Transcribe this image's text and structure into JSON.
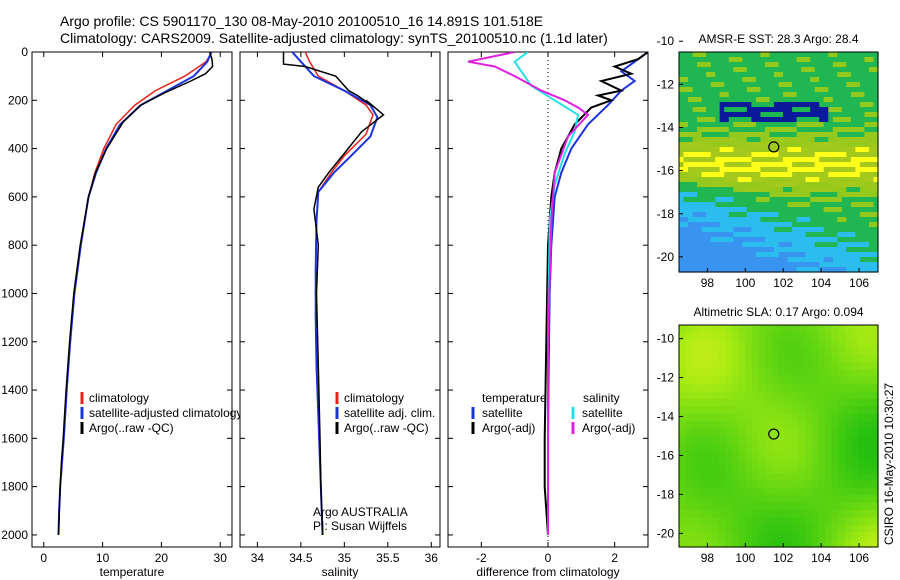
{
  "header": {
    "line1": "Argo profile: CS 5901170_130 08-May-2010 20100510_16 14.891S 101.518E",
    "line2": "Climatology: CARS2009. Satellite-adjusted climatology: synTS_20100510.nc (1.1d later)"
  },
  "side_label": "CSIRO 16-May-2010 10:30:27",
  "colors": {
    "climatology": "#e8221b",
    "satellite": "#1c33e0",
    "argo": "#000000",
    "sat_diff": "#22e0e8",
    "argo_adj": "#e020e0"
  },
  "chart_data": [
    {
      "type": "line",
      "xlabel": "temperature",
      "xlim": [
        -2,
        32
      ],
      "ylim": [
        0,
        2050
      ],
      "xticks": [
        0,
        10,
        20,
        30
      ],
      "yticks": [
        0,
        200,
        400,
        600,
        800,
        1000,
        1200,
        1400,
        1600,
        1800,
        2000
      ],
      "legend": [
        "climatology",
        "satellite-adjusted climatology",
        "Argo(..raw -QC)"
      ],
      "series": [
        {
          "name": "climatology",
          "x": [
            28.6,
            27.6,
            24,
            19,
            15.5,
            12.3,
            10.2,
            8.7,
            7.6,
            6.3,
            5.2,
            4.5,
            3.9,
            3.4,
            3.1,
            2.8,
            2.6,
            2.5
          ],
          "y": [
            0,
            40,
            100,
            160,
            220,
            300,
            400,
            500,
            600,
            800,
            1000,
            1200,
            1400,
            1600,
            1700,
            1800,
            1900,
            2000
          ]
        },
        {
          "name": "satellite-adjusted climatology",
          "x": [
            28.5,
            27.8,
            25.5,
            21,
            16.5,
            13,
            10.6,
            8.9,
            7.6,
            6.3,
            5.2,
            4.5,
            3.9,
            3.4,
            3.1,
            2.8,
            2.6,
            2.5
          ],
          "y": [
            0,
            40,
            100,
            160,
            220,
            300,
            400,
            500,
            600,
            800,
            1000,
            1200,
            1400,
            1600,
            1700,
            1800,
            1900,
            2000
          ]
        },
        {
          "name": "Argo(..raw -QC)",
          "x": [
            28.2,
            28.6,
            28.7,
            27.5,
            25,
            20.5,
            16.5,
            13.5,
            10.7,
            8.8,
            7.6,
            6.2,
            5.1,
            4.4,
            3.8,
            3.3,
            3,
            2.8,
            2.5
          ],
          "y": [
            0,
            30,
            60,
            90,
            120,
            170,
            220,
            290,
            400,
            500,
            600,
            800,
            1000,
            1200,
            1400,
            1600,
            1700,
            1800,
            2000
          ]
        }
      ]
    },
    {
      "type": "line",
      "xlabel": "salinity",
      "xlim": [
        33.8,
        36.1
      ],
      "ylim": [
        0,
        2050
      ],
      "xticks": [
        34,
        34.5,
        35,
        35.5,
        36
      ],
      "yticks": [
        0,
        200,
        400,
        600,
        800,
        1000,
        1200,
        1400,
        1600,
        1800,
        2000
      ],
      "legend": [
        "climatology",
        "satellite adj. clim.",
        "Argo(..raw -QC)"
      ],
      "annotation": [
        "Argo AUSTRALIA",
        "PI: Susan Wijffels"
      ],
      "series": [
        {
          "name": "climatology",
          "x": [
            34.55,
            34.6,
            34.7,
            35.0,
            35.25,
            35.33,
            35.25,
            35.0,
            34.85,
            34.7,
            34.68,
            34.67,
            34.67,
            34.68,
            34.7,
            34.72,
            34.74,
            34.75
          ],
          "y": [
            0,
            40,
            100,
            160,
            220,
            260,
            340,
            430,
            500,
            580,
            700,
            900,
            1100,
            1300,
            1500,
            1700,
            1900,
            2000
          ]
        },
        {
          "name": "satellite adj. clim.",
          "x": [
            34.4,
            34.5,
            34.65,
            35.0,
            35.3,
            35.38,
            35.3,
            35.05,
            34.88,
            34.7,
            34.68,
            34.67,
            34.67,
            34.68,
            34.7,
            34.72,
            34.74,
            34.75
          ],
          "y": [
            0,
            40,
            100,
            160,
            220,
            270,
            350,
            440,
            500,
            580,
            700,
            900,
            1100,
            1300,
            1500,
            1700,
            1900,
            2000
          ]
        },
        {
          "name": "Argo(..raw -QC)",
          "x": [
            34.3,
            34.3,
            34.55,
            34.9,
            35.05,
            35.15,
            35.35,
            35.25,
            35.45,
            35.2,
            35.0,
            34.82,
            34.7,
            34.65,
            34.7,
            34.68,
            34.7,
            34.72,
            34.73,
            34.75
          ],
          "y": [
            0,
            50,
            60,
            100,
            160,
            180,
            230,
            200,
            260,
            330,
            420,
            500,
            560,
            650,
            800,
            1000,
            1300,
            1600,
            1800,
            2000
          ]
        }
      ]
    },
    {
      "type": "line",
      "xlabel": "difference from climatology",
      "xlim": [
        -3,
        3
      ],
      "ylim": [
        0,
        2050
      ],
      "xticks": [
        -2,
        0,
        2
      ],
      "yticks": [
        0,
        200,
        400,
        600,
        800,
        1000,
        1200,
        1400,
        1600,
        1800,
        2000
      ],
      "legend_left": [
        "temperature",
        "satellite",
        "Argo(-adj)"
      ],
      "legend_right": [
        "salinity",
        "satellite",
        "Argo(-adj)"
      ],
      "series": [
        {
          "name": "temperature satellite",
          "x": [
            3,
            2.6,
            2.2,
            2.6,
            2.2,
            1.8,
            1.2,
            0.7,
            0.4,
            0.2,
            0.1,
            0.05,
            0.02,
            0,
            0
          ],
          "y": [
            0,
            40,
            80,
            120,
            160,
            220,
            300,
            400,
            500,
            600,
            800,
            1000,
            1300,
            1600,
            2000
          ]
        },
        {
          "name": "temperature Argo(-adj)",
          "x": [
            3,
            2.7,
            2.0,
            2.5,
            1.6,
            2.2,
            1.5,
            1.9,
            1.3,
            0.8,
            0.4,
            0.2,
            0.1,
            0,
            -0.05,
            -0.1,
            -0.1,
            0
          ],
          "y": [
            0,
            30,
            60,
            90,
            120,
            160,
            180,
            200,
            230,
            300,
            400,
            500,
            600,
            800,
            1200,
            1600,
            1800,
            2000
          ]
        },
        {
          "name": "salinity satellite",
          "x": [
            -0.6,
            -1.0,
            -0.8,
            -0.5,
            0.2,
            0.9,
            0.8,
            0.5,
            0.2,
            0.05,
            0,
            0
          ],
          "y": [
            0,
            40,
            80,
            140,
            200,
            260,
            330,
            420,
            550,
            700,
            1200,
            2000
          ]
        },
        {
          "name": "salinity Argo(-adj)",
          "x": [
            -1.0,
            -2.4,
            -1.6,
            -1.0,
            -0.2,
            0.5,
            0.9,
            1.2,
            0.6,
            0.2,
            0.1,
            0,
            0
          ],
          "y": [
            0,
            40,
            60,
            100,
            160,
            200,
            230,
            260,
            350,
            500,
            700,
            1200,
            2000
          ]
        }
      ]
    },
    {
      "type": "heatmap",
      "title": "AMSR-E SST: 28.3 Argo: 28.4",
      "xlim": [
        96.5,
        107
      ],
      "ylim": [
        -10.5,
        -20.7
      ],
      "xticks": [
        98,
        100,
        102,
        104,
        106
      ],
      "yticks": [
        -10,
        -12,
        -14,
        -16,
        -18,
        -20
      ],
      "marker": {
        "x": 101.5,
        "y": -14.9
      }
    },
    {
      "type": "heatmap",
      "title": "Altimetric SLA: 0.17 Argo: 0.094",
      "xlim": [
        96.5,
        107
      ],
      "ylim": [
        -9.3,
        -20.7
      ],
      "xticks": [
        98,
        100,
        102,
        104,
        106
      ],
      "yticks": [
        -10,
        -12,
        -14,
        -16,
        -18,
        -20
      ],
      "marker": {
        "x": 101.5,
        "y": -14.9
      }
    }
  ]
}
